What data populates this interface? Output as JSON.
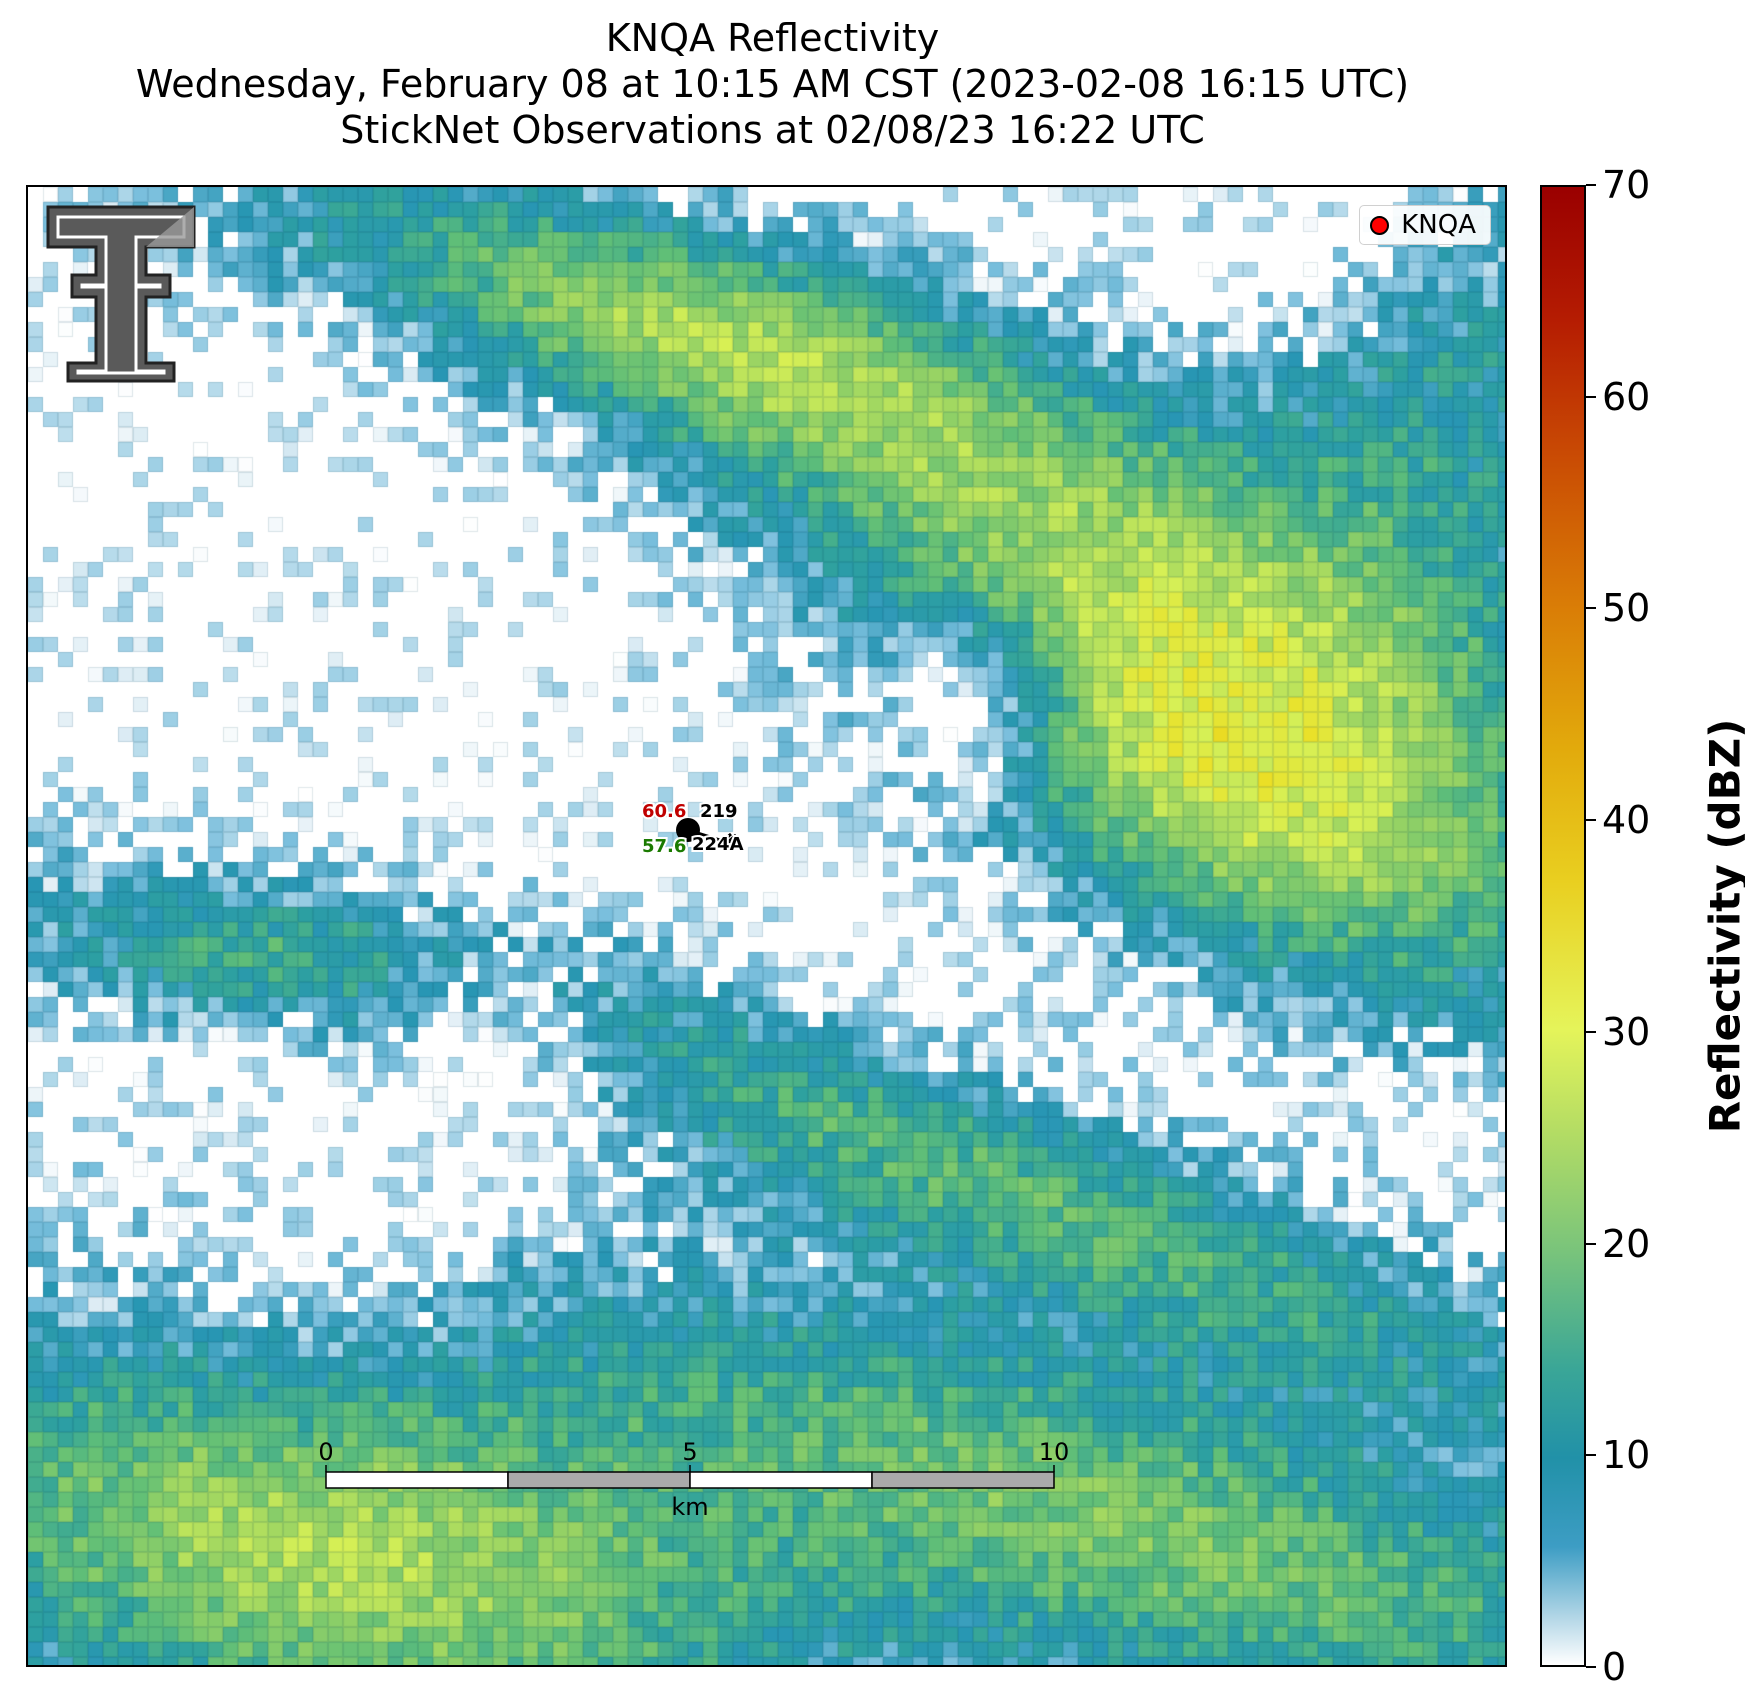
{
  "title": {
    "line1": "KNQA Reflectivity",
    "line2": "Wednesday, February 08 at 10:15 AM CST (2023-02-08 16:15 UTC)",
    "line3": "StickNet Observations at 02/08/23 16:22 UTC"
  },
  "legend": {
    "label": "KNQA",
    "marker_color": "#ff0000"
  },
  "station": {
    "temperature": "60.6",
    "dewpoint": "57.6",
    "pressure": "219",
    "station_id": "224A",
    "temperature_color": "#c00000",
    "dewpoint_color": "#1a7a00"
  },
  "scale_bar": {
    "labels": [
      "0",
      "5",
      "10"
    ],
    "unit": "km"
  },
  "colorbar": {
    "title": "Reflectivity (dBZ)",
    "ticks": [
      "0",
      "10",
      "20",
      "30",
      "40",
      "50",
      "60",
      "70"
    ],
    "min": 0,
    "max": 70
  },
  "logo": {
    "name": "Texas Tech double-T logo"
  },
  "colors": {
    "accent_red": "#ff0000"
  }
}
